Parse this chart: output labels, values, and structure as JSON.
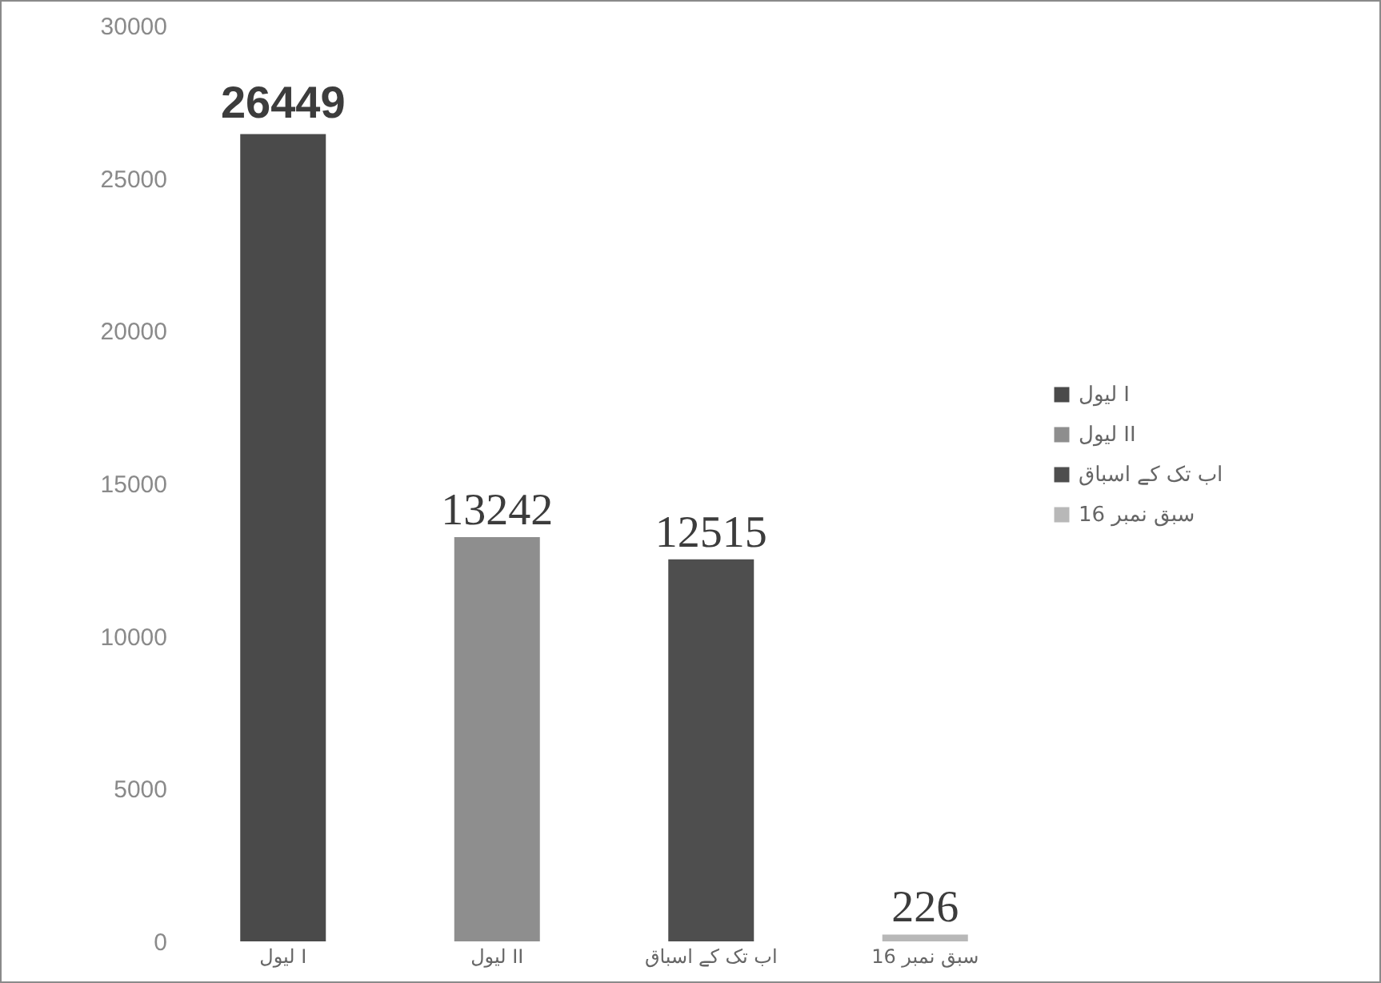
{
  "chart_data": {
    "type": "bar",
    "categories": [
      "لیول I",
      "لیول II",
      "اب تک کے اسباق",
      "سبق نمبر 16"
    ],
    "series": [
      {
        "name": "لیول I",
        "color": "#4a4a4a",
        "values": [
          26449,
          null,
          null,
          null
        ]
      },
      {
        "name": "لیول II",
        "color": "#8e8e8e",
        "values": [
          null,
          13242,
          null,
          null
        ]
      },
      {
        "name": "اب تک کے اسباق",
        "color": "#4e4e4e",
        "values": [
          null,
          null,
          12515,
          null
        ]
      },
      {
        "name": "سبق نمبر 16",
        "color": "#b8b8b8",
        "values": [
          null,
          null,
          null,
          226
        ]
      }
    ],
    "ylim": [
      0,
      30000
    ],
    "yticks": [
      0,
      5000,
      10000,
      15000,
      20000,
      25000,
      30000
    ],
    "legend": "right",
    "data_labels": true
  }
}
